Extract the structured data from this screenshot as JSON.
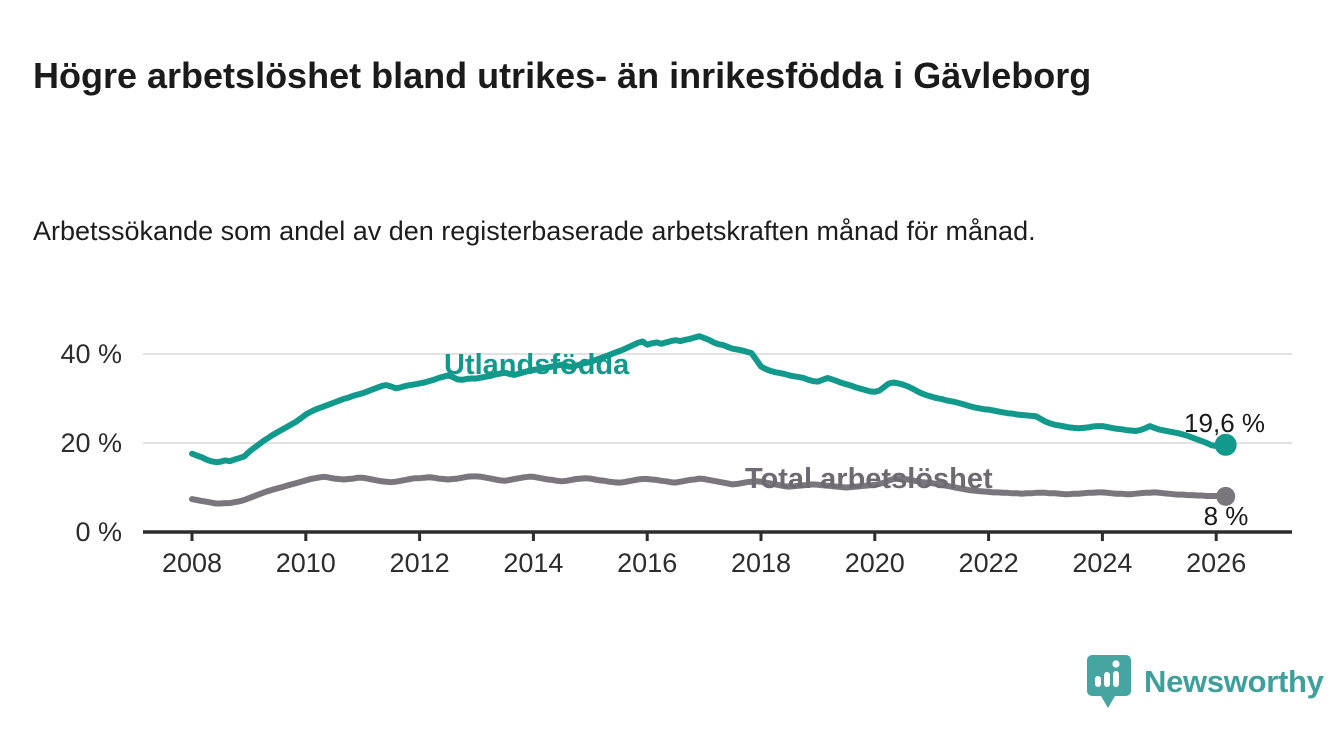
{
  "header": {
    "title": "Högre arbetslöshet bland utrikes- än inrikesfödda i Gävleborg",
    "subtitle": "Arbetssökande som andel av den registerbaserade arbetskraften månad för månad."
  },
  "chart_data": {
    "type": "line",
    "title": "Högre arbetslöshet bland utrikes- än inrikesfödda i Gävleborg",
    "subtitle": "Arbetssökande som andel av den registerbaserade arbetskraften månad för månad.",
    "xlabel": "",
    "ylabel": "",
    "unit": "%",
    "x_interval": "monthly",
    "x_start": "2008-01",
    "x_end": "2026-03",
    "xticks": [
      2008,
      2010,
      2012,
      2014,
      2016,
      2018,
      2020,
      2022,
      2024,
      2026
    ],
    "ytick_labels": [
      "0 %",
      "20 %",
      "40 %"
    ],
    "ytick_values": [
      0,
      20,
      40
    ],
    "grid_values": [
      20,
      40
    ],
    "ylim": [
      0,
      46
    ],
    "legend_position": "inline-labels",
    "grid": true,
    "colors": {
      "grid": "#d8d8d8",
      "axis": "#2d2d2d",
      "tick_text": "#2d2d2d"
    },
    "series": [
      {
        "name": "Utlandsfödda",
        "color": "#119a8b",
        "end_label": "19,6 %",
        "end_value": 19.6,
        "values": [
          17.6,
          17.2,
          16.8,
          16.3,
          15.9,
          15.7,
          15.8,
          16.1,
          15.9,
          16.3,
          16.6,
          17.0,
          18.0,
          18.8,
          19.6,
          20.4,
          21.1,
          21.8,
          22.4,
          23.0,
          23.6,
          24.2,
          24.8,
          25.6,
          26.4,
          27.0,
          27.5,
          27.9,
          28.3,
          28.7,
          29.1,
          29.5,
          29.9,
          30.2,
          30.6,
          30.9,
          31.2,
          31.6,
          32.0,
          32.4,
          32.8,
          33.0,
          32.7,
          32.3,
          32.5,
          32.8,
          33.0,
          33.2,
          33.4,
          33.6,
          33.9,
          34.2,
          34.6,
          34.9,
          35.2,
          34.8,
          34.3,
          34.2,
          34.4,
          34.5,
          34.5,
          34.7,
          34.9,
          35.1,
          35.4,
          35.6,
          35.8,
          35.5,
          35.3,
          35.6,
          35.9,
          36.2,
          36.4,
          36.6,
          36.8,
          37.0,
          37.2,
          37.4,
          37.6,
          37.3,
          37.1,
          37.4,
          37.7,
          38.0,
          38.2,
          38.6,
          39.0,
          39.4,
          39.8,
          40.2,
          40.6,
          41.0,
          41.5,
          42.0,
          42.5,
          42.8,
          42.1,
          42.4,
          42.6,
          42.3,
          42.6,
          42.9,
          43.1,
          42.9,
          43.2,
          43.4,
          43.7,
          44.0,
          43.6,
          43.2,
          42.6,
          42.2,
          42.0,
          41.6,
          41.2,
          41.0,
          40.8,
          40.5,
          40.2,
          38.7,
          37.2,
          36.6,
          36.2,
          35.9,
          35.7,
          35.5,
          35.2,
          35.0,
          34.8,
          34.6,
          34.2,
          33.9,
          33.8,
          34.2,
          34.6,
          34.3,
          33.9,
          33.5,
          33.2,
          32.9,
          32.5,
          32.2,
          31.9,
          31.6,
          31.5,
          31.8,
          32.6,
          33.4,
          33.6,
          33.4,
          33.1,
          32.7,
          32.2,
          31.6,
          31.1,
          30.7,
          30.4,
          30.1,
          29.9,
          29.6,
          29.4,
          29.2,
          28.9,
          28.6,
          28.3,
          28.0,
          27.8,
          27.6,
          27.5,
          27.3,
          27.1,
          26.9,
          26.7,
          26.6,
          26.4,
          26.3,
          26.2,
          26.1,
          26.0,
          25.4,
          24.8,
          24.4,
          24.1,
          23.9,
          23.7,
          23.5,
          23.4,
          23.3,
          23.4,
          23.5,
          23.7,
          23.8,
          23.8,
          23.6,
          23.4,
          23.2,
          23.1,
          22.9,
          22.8,
          22.7,
          22.9,
          23.3,
          23.8,
          23.4,
          23.0,
          22.8,
          22.6,
          22.4,
          22.2,
          21.9,
          21.6,
          21.2,
          20.8,
          20.4,
          20.0,
          19.5,
          19.3,
          19.4,
          19.6
        ]
      },
      {
        "name": "Total arbetslöshet",
        "color": "#7a767d",
        "end_label": "8 %",
        "end_value": 8.0,
        "values": [
          7.4,
          7.2,
          7.0,
          6.8,
          6.6,
          6.4,
          6.4,
          6.5,
          6.5,
          6.7,
          6.9,
          7.2,
          7.6,
          8.0,
          8.4,
          8.8,
          9.2,
          9.5,
          9.8,
          10.1,
          10.4,
          10.7,
          11.0,
          11.3,
          11.6,
          11.9,
          12.1,
          12.3,
          12.4,
          12.2,
          12.0,
          11.9,
          11.8,
          11.9,
          12.0,
          12.2,
          12.2,
          12.0,
          11.8,
          11.6,
          11.4,
          11.3,
          11.2,
          11.3,
          11.5,
          11.7,
          11.9,
          12.1,
          12.1,
          12.2,
          12.3,
          12.2,
          12.0,
          11.9,
          11.8,
          11.9,
          12.0,
          12.2,
          12.4,
          12.5,
          12.5,
          12.4,
          12.2,
          12.0,
          11.8,
          11.6,
          11.5,
          11.7,
          11.9,
          12.1,
          12.3,
          12.4,
          12.4,
          12.2,
          12.0,
          11.8,
          11.7,
          11.5,
          11.4,
          11.5,
          11.7,
          11.9,
          12.0,
          12.1,
          12.0,
          11.8,
          11.6,
          11.5,
          11.3,
          11.2,
          11.1,
          11.2,
          11.4,
          11.6,
          11.8,
          11.9,
          11.9,
          11.8,
          11.7,
          11.5,
          11.4,
          11.2,
          11.1,
          11.3,
          11.5,
          11.7,
          11.8,
          12.0,
          11.9,
          11.7,
          11.5,
          11.3,
          11.1,
          10.9,
          10.7,
          10.8,
          11.0,
          11.2,
          11.3,
          11.4,
          11.3,
          11.1,
          10.9,
          10.7,
          10.5,
          10.3,
          10.2,
          10.3,
          10.4,
          10.5,
          10.6,
          10.7,
          10.6,
          10.5,
          10.4,
          10.3,
          10.2,
          10.1,
          10.0,
          10.1,
          10.2,
          10.3,
          10.4,
          10.5,
          10.6,
          10.8,
          11.1,
          11.6,
          11.9,
          12.0,
          11.9,
          11.8,
          11.6,
          11.4,
          11.2,
          11.1,
          11.0,
          10.8,
          10.6,
          10.4,
          10.2,
          10.0,
          9.8,
          9.6,
          9.4,
          9.3,
          9.2,
          9.1,
          9.0,
          8.9,
          8.9,
          8.8,
          8.8,
          8.7,
          8.7,
          8.6,
          8.7,
          8.7,
          8.8,
          8.8,
          8.8,
          8.7,
          8.7,
          8.6,
          8.5,
          8.5,
          8.6,
          8.6,
          8.7,
          8.8,
          8.8,
          8.9,
          8.9,
          8.8,
          8.7,
          8.6,
          8.6,
          8.5,
          8.5,
          8.6,
          8.7,
          8.8,
          8.8,
          8.9,
          8.8,
          8.7,
          8.6,
          8.5,
          8.4,
          8.4,
          8.3,
          8.3,
          8.2,
          8.2,
          8.1,
          8.1,
          8.1,
          8.0,
          8.0
        ]
      }
    ]
  },
  "footer": {
    "brand": "Newsworthy"
  }
}
